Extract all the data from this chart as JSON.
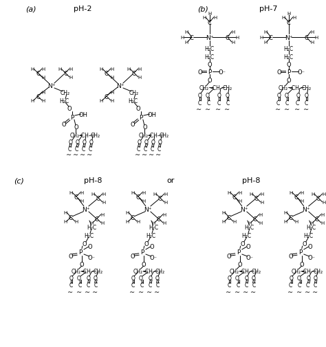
{
  "bg_color": "#ffffff",
  "text_color": "#000000",
  "sections": {
    "a_label": "(a)",
    "a_ph": "pH-2",
    "b_label": "(b)",
    "b_ph": "pH-7",
    "c_label": "(c)",
    "c_ph": "pH-8",
    "or_label": "or",
    "d_ph": "pH-8"
  }
}
